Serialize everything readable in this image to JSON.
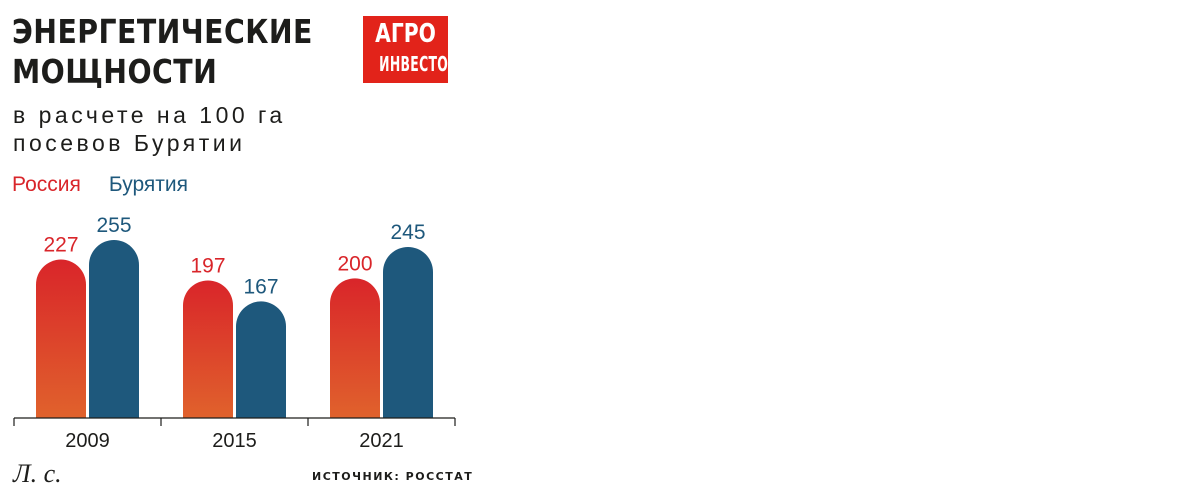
{
  "title": {
    "line1": "ЭНЕРГЕТИЧЕСКИЕ",
    "line2": "МОЩНОСТИ"
  },
  "subtitle": {
    "line1": "в расчете на 100 га",
    "line2": "посевов Бурятии"
  },
  "logo": {
    "line1": "АГРО",
    "line2": "ИНВЕСТОР",
    "color": "#e2231a"
  },
  "unit_label": "Л. с.",
  "source": "ИСТОЧНИК: РОССТАТ",
  "chart_data": {
    "type": "bar",
    "title": "ЭНЕРГЕТИЧЕСКИЕ МОЩНОСТИ",
    "subtitle": "в расчете на 100 га посевов Бурятии",
    "ylabel": "Л. с.",
    "categories": [
      "2009",
      "2015",
      "2021"
    ],
    "series": [
      {
        "name": "Россия",
        "values": [
          227,
          197,
          200
        ],
        "color": "#d9252a",
        "color_bottom": "#e0622c"
      },
      {
        "name": "Бурятия",
        "values": [
          255,
          167,
          245
        ],
        "color": "#1e587c",
        "color_bottom": "#1e587c"
      }
    ],
    "ylim": [
      0,
      255
    ],
    "grid": false,
    "legend": "top-left"
  }
}
